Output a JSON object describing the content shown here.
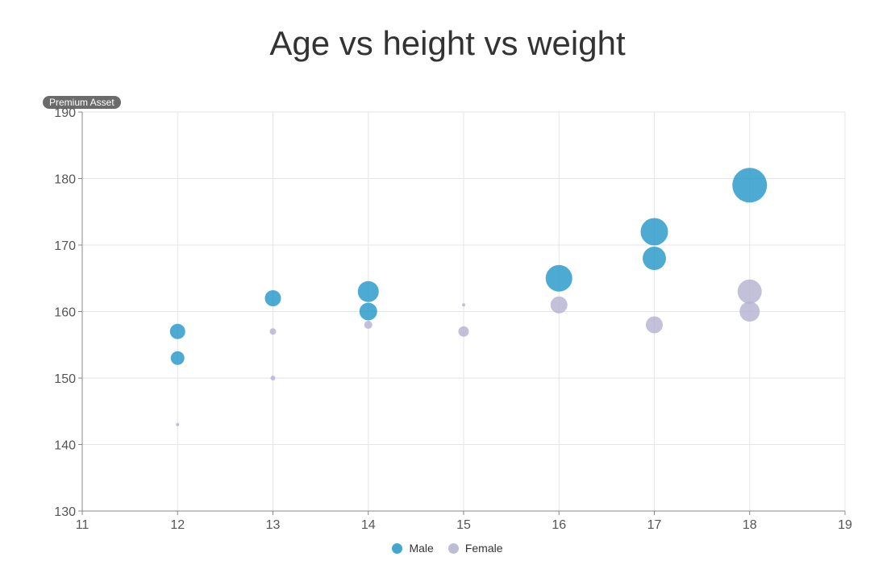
{
  "chart_data": {
    "type": "scatter",
    "title": "Age vs height vs weight",
    "badge": "Premium Asset",
    "xlabel": "",
    "ylabel": "",
    "xlim": [
      11,
      19
    ],
    "ylim": [
      130,
      190
    ],
    "x_ticks": [
      11,
      12,
      13,
      14,
      15,
      16,
      17,
      18,
      19
    ],
    "y_ticks": [
      130,
      140,
      150,
      160,
      170,
      180,
      190
    ],
    "grid": true,
    "legend_position": "bottom-center",
    "series": [
      {
        "name": "Male",
        "color": "#2196c8",
        "points": [
          {
            "x": 12,
            "y": 157,
            "size": 19
          },
          {
            "x": 12,
            "y": 153,
            "size": 17
          },
          {
            "x": 13,
            "y": 162,
            "size": 20
          },
          {
            "x": 14,
            "y": 163,
            "size": 26
          },
          {
            "x": 14,
            "y": 160,
            "size": 22
          },
          {
            "x": 16,
            "y": 165,
            "size": 33
          },
          {
            "x": 17,
            "y": 172,
            "size": 34
          },
          {
            "x": 17,
            "y": 168,
            "size": 29
          },
          {
            "x": 18,
            "y": 179,
            "size": 43
          }
        ]
      },
      {
        "name": "Female",
        "color": "#b3b2cf",
        "points": [
          {
            "x": 12,
            "y": 143,
            "size": 4
          },
          {
            "x": 13,
            "y": 157,
            "size": 8
          },
          {
            "x": 13,
            "y": 150,
            "size": 6
          },
          {
            "x": 14,
            "y": 158,
            "size": 10
          },
          {
            "x": 15,
            "y": 161,
            "size": 4
          },
          {
            "x": 15,
            "y": 157,
            "size": 13
          },
          {
            "x": 16,
            "y": 161,
            "size": 21
          },
          {
            "x": 17,
            "y": 158,
            "size": 21
          },
          {
            "x": 18,
            "y": 163,
            "size": 30
          },
          {
            "x": 18,
            "y": 160,
            "size": 25
          }
        ]
      }
    ]
  }
}
